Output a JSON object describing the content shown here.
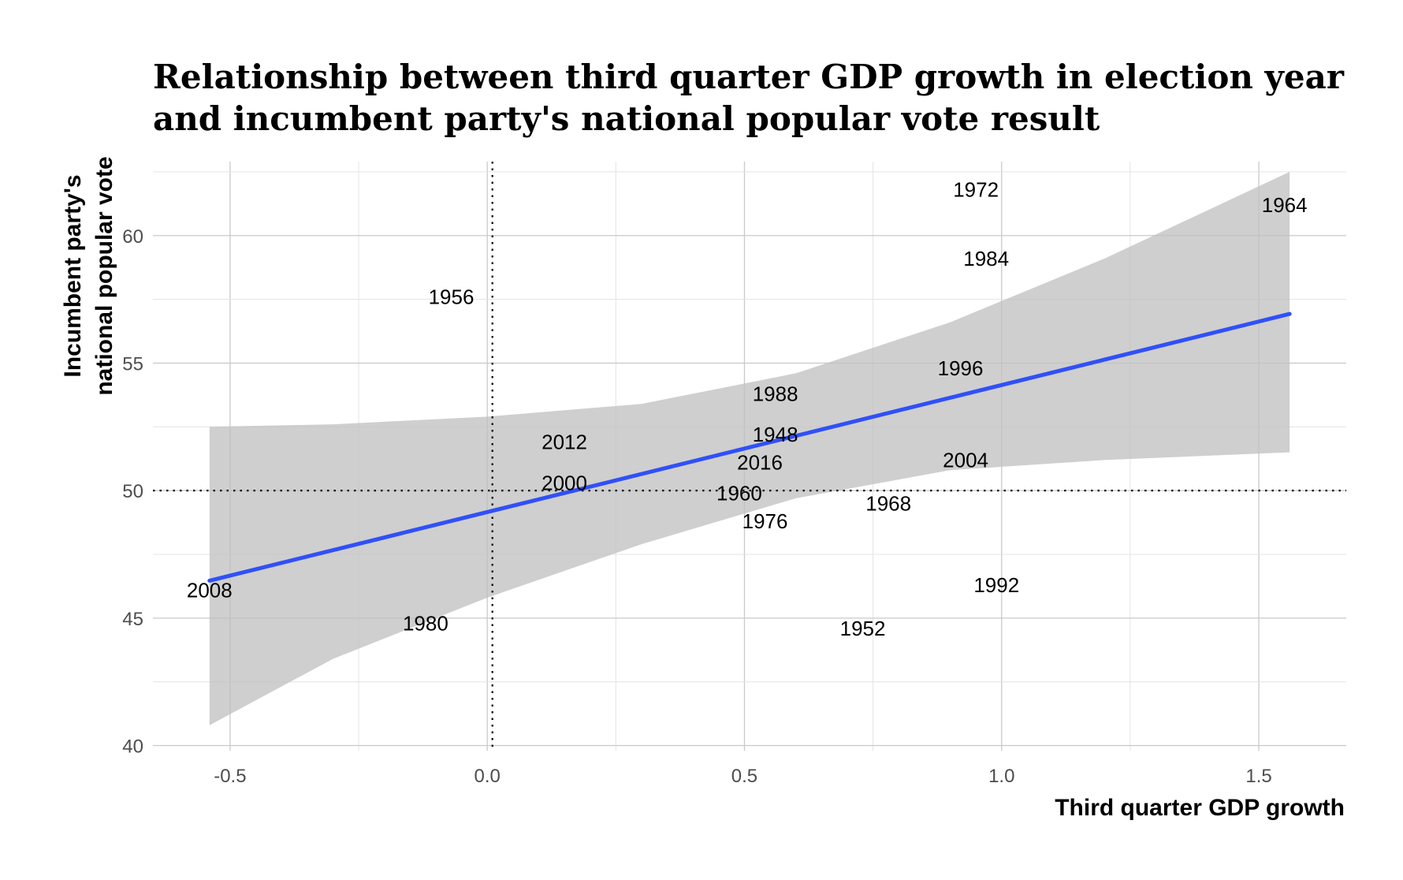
{
  "chart_data": {
    "type": "scatter",
    "title_lines": [
      "Relationship between third quarter GDP growth in election year",
      "and incumbent party's national popular vote result"
    ],
    "xlabel": "Third quarter GDP growth",
    "ylabel_lines": [
      "Incumbent party's",
      "national popular vote"
    ],
    "xlim": [
      -0.65,
      1.67
    ],
    "ylim": [
      39.8,
      62.9
    ],
    "x_ticks": [
      -0.5,
      0.0,
      0.5,
      1.0,
      1.5
    ],
    "x_tick_labels": [
      "-0.5",
      "0.0",
      "0.5",
      "1.0",
      "1.5"
    ],
    "y_ticks": [
      40,
      45,
      50,
      55,
      60
    ],
    "y_tick_labels": [
      "40",
      "45",
      "50",
      "55",
      "60"
    ],
    "grid": true,
    "reference_lines": {
      "x": 0.01,
      "y": 50
    },
    "points": [
      {
        "label": "1948",
        "x": 0.56,
        "y": 52.2
      },
      {
        "label": "1952",
        "x": 0.73,
        "y": 44.6
      },
      {
        "label": "1956",
        "x": -0.07,
        "y": 57.6
      },
      {
        "label": "1960",
        "x": 0.49,
        "y": 49.9
      },
      {
        "label": "1964",
        "x": 1.55,
        "y": 61.2
      },
      {
        "label": "1968",
        "x": 0.78,
        "y": 49.5
      },
      {
        "label": "1972",
        "x": 0.95,
        "y": 61.8
      },
      {
        "label": "1976",
        "x": 0.54,
        "y": 48.8
      },
      {
        "label": "1980",
        "x": -0.12,
        "y": 44.8
      },
      {
        "label": "1984",
        "x": 0.97,
        "y": 59.1
      },
      {
        "label": "1988",
        "x": 0.56,
        "y": 53.8
      },
      {
        "label": "1992",
        "x": 0.99,
        "y": 46.3
      },
      {
        "label": "1996",
        "x": 0.92,
        "y": 54.8
      },
      {
        "label": "2000",
        "x": 0.15,
        "y": 50.3
      },
      {
        "label": "2004",
        "x": 0.93,
        "y": 51.2
      },
      {
        "label": "2008",
        "x": -0.54,
        "y": 46.1
      },
      {
        "label": "2012",
        "x": 0.15,
        "y": 51.9
      },
      {
        "label": "2016",
        "x": 0.53,
        "y": 51.1
      }
    ],
    "fit": {
      "method": "linear",
      "color": "#3050f8",
      "x_range": [
        -0.54,
        1.56
      ],
      "band_x": [
        -0.54,
        -0.3,
        0.0,
        0.3,
        0.6,
        0.9,
        1.2,
        1.56
      ],
      "band_lower": [
        40.8,
        43.4,
        45.8,
        47.9,
        49.7,
        50.8,
        51.2,
        51.5
      ],
      "band_upper": [
        52.5,
        52.6,
        52.9,
        53.4,
        54.6,
        56.6,
        59.1,
        62.5
      ],
      "band_color": "#bfbfbf"
    }
  }
}
